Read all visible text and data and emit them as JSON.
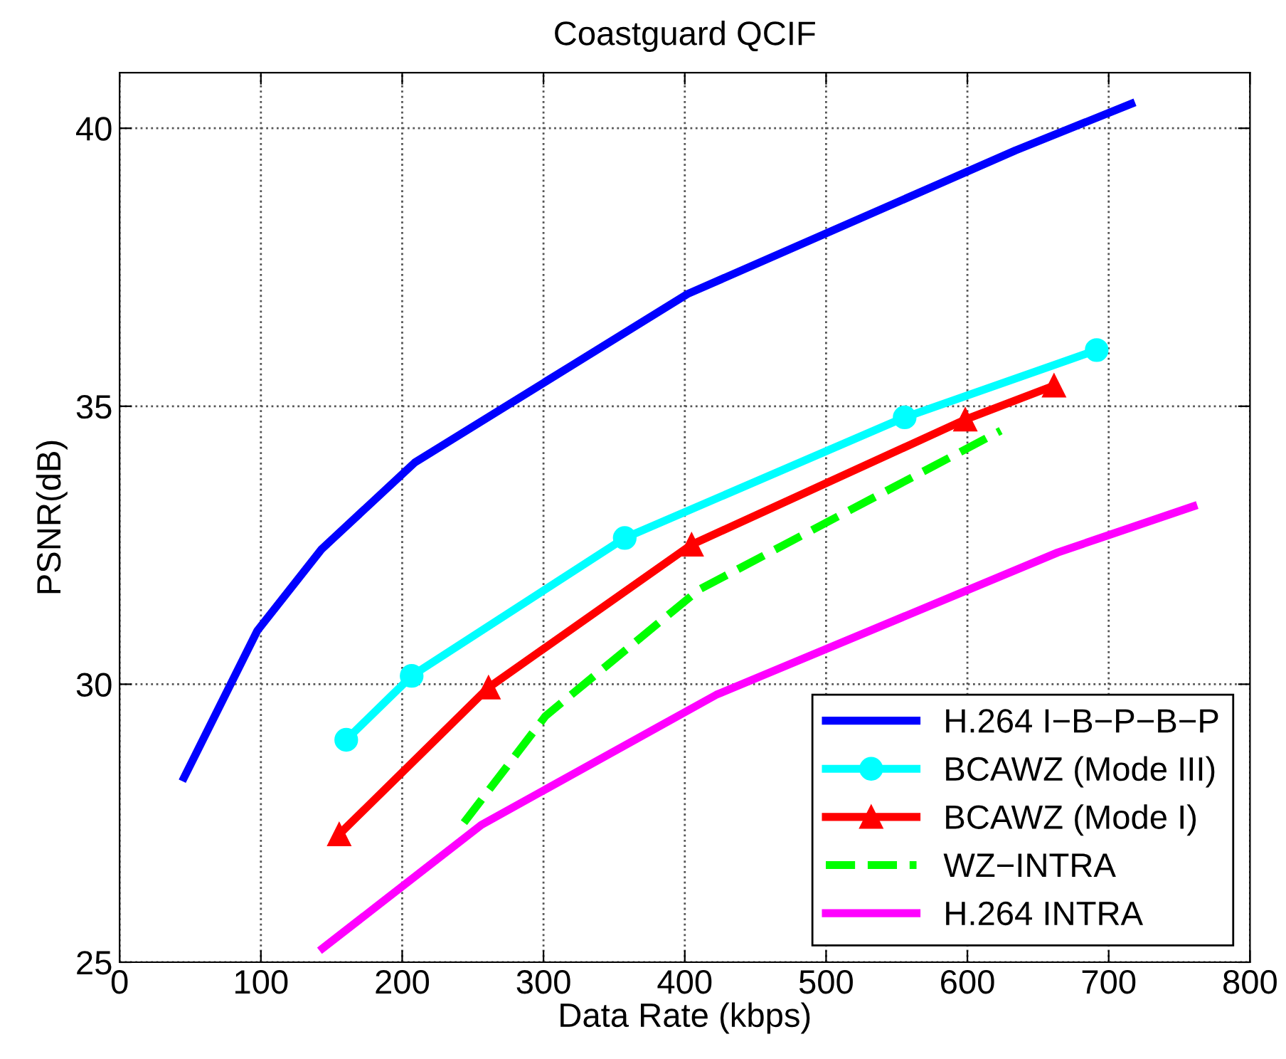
{
  "chart_data": {
    "type": "line",
    "title": "Coastguard QCIF",
    "xlabel": "Data Rate (kbps)",
    "ylabel": "PSNR(dB)",
    "xlim": [
      0,
      800
    ],
    "xticks": [
      0,
      100,
      200,
      300,
      400,
      500,
      600,
      700,
      800
    ],
    "ylim": [
      25,
      41
    ],
    "yticks": [
      25,
      30,
      35,
      40
    ],
    "grid": true,
    "legend": "bottom right",
    "series": [
      {
        "name": "H.264 I−B−P−B−P",
        "color": "#0000ff",
        "marker": "none",
        "line_style": "solid",
        "x": [
          45.6,
          97.4,
          143,
          209,
          402,
          634,
          716
        ],
        "values": [
          28.32,
          30.96,
          32.43,
          33.99,
          37.02,
          39.6,
          40.44
        ]
      },
      {
        "name": "BCAWZ (Mode III)",
        "color": "#00ffff",
        "marker": "circle",
        "line_style": "solid",
        "x": [
          160.4,
          206.7,
          357.5,
          555.6,
          691.5
        ],
        "values": [
          29.0,
          30.15,
          32.63,
          34.8,
          36.01
        ]
      },
      {
        "name": "BCAWZ (Mode I)",
        "color": "#ff0000",
        "marker": "triangle",
        "line_style": "solid",
        "x": [
          155.4,
          261.1,
          404.8,
          598.5,
          661.3
        ],
        "values": [
          27.3,
          29.94,
          32.51,
          34.76,
          35.37
        ]
      },
      {
        "name": "WZ−INTRA",
        "color": "#00ff00",
        "marker": "none",
        "line_style": "dashed",
        "x": [
          243.7,
          301.5,
          410,
          623.6
        ],
        "values": [
          27.51,
          29.43,
          31.7,
          34.56
        ]
      },
      {
        "name": "H.264 INTRA",
        "color": "#ff00ff",
        "marker": "none",
        "line_style": "solid",
        "x": [
          143.7,
          256,
          422.3,
          664,
          760
        ],
        "values": [
          25.25,
          27.47,
          29.81,
          32.37,
          33.2
        ]
      }
    ]
  }
}
